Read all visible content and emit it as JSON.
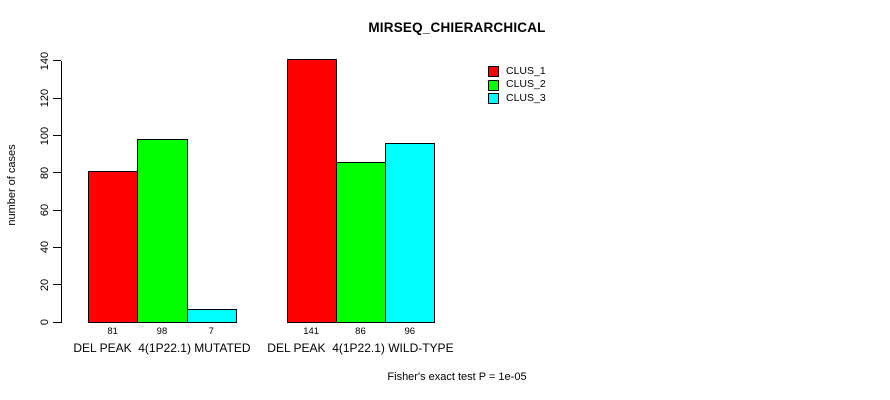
{
  "header": {
    "title": "MIRSEQ_CHIERARCHICAL"
  },
  "chart_data": {
    "type": "bar",
    "title": "MIRSEQ_CHIERARCHICAL",
    "xlabel": "",
    "ylabel": "number of cases",
    "ylim": [
      0,
      140
    ],
    "yticks": [
      0,
      20,
      40,
      60,
      80,
      100,
      120,
      140
    ],
    "grid": false,
    "legend_position": "top-right",
    "categories": [
      "DEL PEAK  4(1P22.1) MUTATED",
      "DEL PEAK  4(1P22.1) WILD-TYPE"
    ],
    "series": [
      {
        "name": "CLUS_1",
        "color": "#ff0000",
        "values": [
          81,
          141
        ]
      },
      {
        "name": "CLUS_2",
        "color": "#00ff00",
        "values": [
          98,
          86
        ]
      },
      {
        "name": "CLUS_3",
        "color": "#00ffff",
        "values": [
          7,
          96
        ]
      }
    ],
    "bar_value_labels": [
      [
        "81",
        "98",
        "7"
      ],
      [
        "141",
        "86",
        "96"
      ]
    ],
    "footnote": "Fisher's exact test P = 1e-05"
  },
  "colors": {
    "axis": "#000000",
    "text": "#000000",
    "background": "#ffffff"
  }
}
